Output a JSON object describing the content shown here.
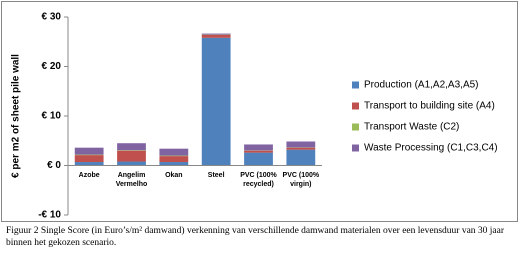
{
  "chart_data": {
    "type": "bar",
    "stacked": true,
    "y_label": "€ per m2 of sheet pile wall",
    "caption": "Figuur 2 Single Score (in Euro’s/m² damwand) verkenning van verschillende damwand materialen over een levensduur van 30 jaar binnen het gekozen scenario.",
    "categories": [
      "Azobe",
      "Angelim Vermelho",
      "Okan",
      "Steel",
      "PVC (100% recycled)",
      "PVC (100% virgin)"
    ],
    "series": [
      {
        "name": "Production (A1,A2,A3,A5)",
        "color": "#4f81bd",
        "values": [
          0.7,
          0.8,
          0.7,
          25.8,
          2.6,
          3.2
        ]
      },
      {
        "name": "Transport to building site (A4)",
        "color": "#c0504d",
        "values": [
          1.4,
          2.2,
          1.2,
          0.6,
          0.4,
          0.4
        ]
      },
      {
        "name": "Transport Waste (C2)",
        "color": "#9bbb59",
        "values": [
          0.1,
          0.1,
          0.1,
          0.05,
          0.05,
          0.05
        ]
      },
      {
        "name": "Waste Processing (C1,C3,C4)",
        "color": "#8064a2",
        "values": [
          1.4,
          1.4,
          1.4,
          0.2,
          1.2,
          1.2
        ]
      }
    ],
    "ylim": [
      -10,
      30
    ],
    "yticks": [
      {
        "value": -10,
        "label": "-€ 10"
      },
      {
        "value": 0,
        "label": "€ 0"
      },
      {
        "value": 10,
        "label": "€ 10"
      },
      {
        "value": 20,
        "label": "€ 20"
      },
      {
        "value": 30,
        "label": "€ 30"
      }
    ],
    "legend": "right"
  }
}
